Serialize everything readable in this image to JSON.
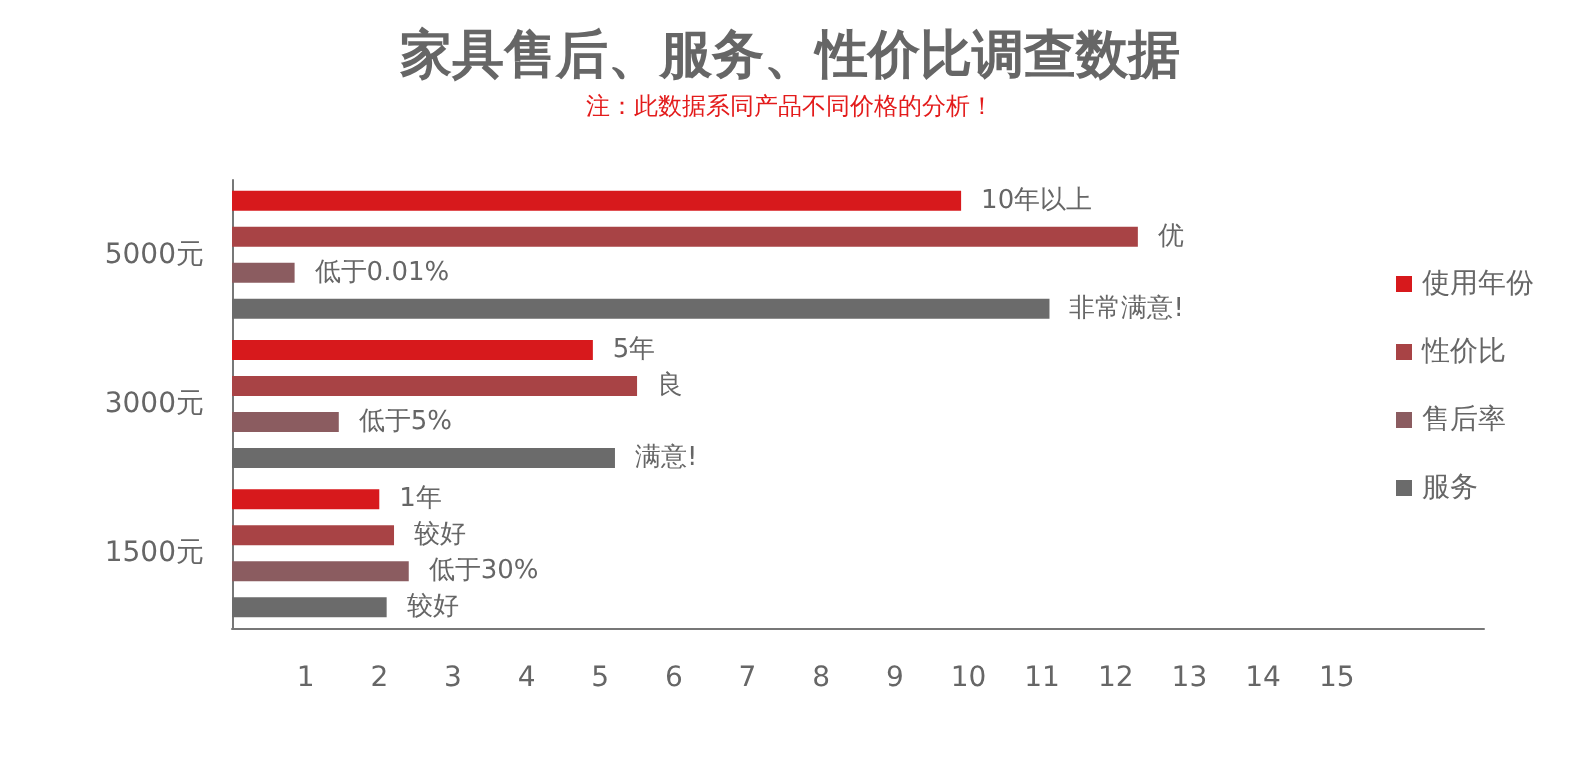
{
  "chart_data": {
    "type": "bar",
    "orientation": "horizontal",
    "title": "家具售后、服务、性价比调查数据",
    "subtitle": "注：此数据系同产品不同价格的分析！",
    "categories": [
      "5000元",
      "3000元",
      "1500元"
    ],
    "series": [
      {
        "name": "使用年份",
        "color": "#d7191c",
        "values": [
          9.9,
          4.9,
          2.0
        ]
      },
      {
        "name": "性价比",
        "color": "#a84345",
        "values": [
          12.3,
          5.5,
          2.2
        ]
      },
      {
        "name": "售后率",
        "color": "#8b5c60",
        "values": [
          0.85,
          1.45,
          2.4
        ]
      },
      {
        "name": "服务",
        "color": "#6b6b6b",
        "values": [
          11.1,
          5.2,
          2.1
        ]
      }
    ],
    "annotations": [
      {
        "text": "10年以上",
        "x": 9.9,
        "y": "5000元"
      },
      {
        "text": "优",
        "x": 12.3,
        "y": "5000元"
      },
      {
        "text": "低于0.01%",
        "x": 0.85,
        "y": "5000元"
      },
      {
        "text": "非常满意!",
        "x": 11.1,
        "y": "5000元"
      },
      {
        "text": "5年",
        "x": 4.9,
        "y": "3000元"
      },
      {
        "text": "良",
        "x": 5.5,
        "y": "3000元"
      },
      {
        "text": "低于5%",
        "x": 1.45,
        "y": "3000元"
      },
      {
        "text": "满意!",
        "x": 5.2,
        "y": "3000元"
      },
      {
        "text": "1年",
        "x": 2.0,
        "y": "1500元"
      },
      {
        "text": "较好",
        "x": 2.2,
        "y": "1500元"
      },
      {
        "text": "低于30%",
        "x": 2.4,
        "y": "1500元"
      },
      {
        "text": "较好",
        "x": 2.1,
        "y": "1500元"
      }
    ],
    "xlim": [
      0,
      17
    ],
    "xticks": [
      1,
      2,
      3,
      4,
      5,
      6,
      7,
      8,
      9,
      10,
      11,
      12,
      13,
      14,
      15
    ],
    "grid": false,
    "legend": "right"
  }
}
